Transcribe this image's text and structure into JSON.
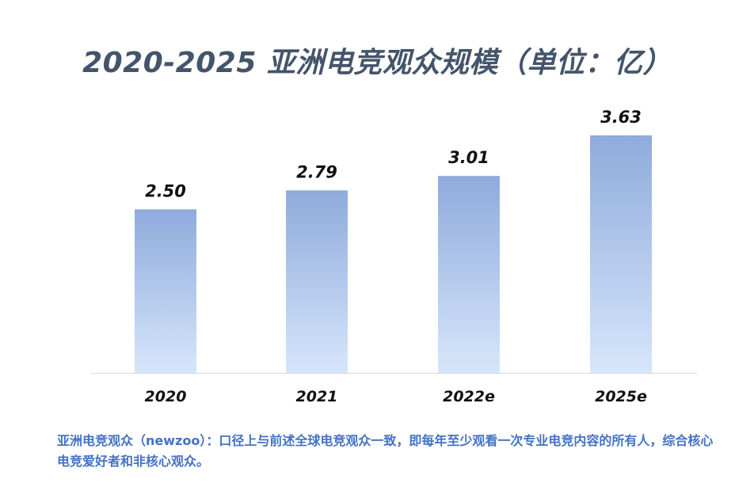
{
  "chart_data": {
    "type": "bar",
    "title": "2020-2025 亚洲电竞观众规模（单位：亿）",
    "categories": [
      "2020",
      "2021",
      "2022e",
      "2025e"
    ],
    "values": [
      2.5,
      2.79,
      3.01,
      3.63
    ],
    "value_labels": [
      "2.50",
      "2.79",
      "3.01",
      "3.63"
    ],
    "xlabel": "",
    "ylabel": "",
    "ylim": [
      0,
      3.63
    ],
    "grid": false,
    "bar_gradient": {
      "top": "#8fabdc",
      "bottom": "#d6e6fb"
    },
    "axis_color": "#d9d9d9"
  },
  "footnote": "亚洲电竞观众（newzoo）：口径上与前述全球电竞观众一致，即每年至少观看一次专业电竞内容的所有人，综合核心电竞爱好者和非核心观众。"
}
